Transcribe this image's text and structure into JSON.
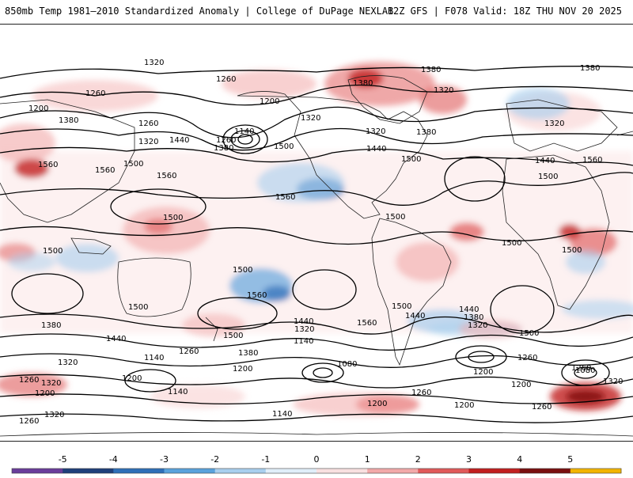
{
  "header": {
    "left_text": "850mb Temp 1981–2010 Standardized Anomaly | College of DuPage NEXLAB",
    "right_text": "12Z GFS | F078 Valid: 18Z THU NOV 20 2025"
  },
  "colorbar": {
    "ticks": [
      "-5",
      "-4",
      "-3",
      "-2",
      "-1",
      "0",
      "1",
      "2",
      "3",
      "4",
      "5"
    ],
    "colors": [
      "#6a3d9a",
      "#1f3f7a",
      "#2f6fb8",
      "#5aa2dc",
      "#a9cfee",
      "#e0eef9",
      "#f9e0e0",
      "#f2a9a9",
      "#e05a5a",
      "#c21f1f",
      "#7a0f0f",
      "#f2b400"
    ]
  },
  "contour_labels": [
    {
      "text": "1320"
    },
    {
      "text": "1380"
    },
    {
      "text": "1380"
    },
    {
      "text": "1260"
    },
    {
      "text": "1260"
    },
    {
      "text": "1200"
    },
    {
      "text": "1200"
    },
    {
      "text": "1380"
    },
    {
      "text": "1320"
    },
    {
      "text": "1320"
    },
    {
      "text": "1380"
    },
    {
      "text": "1260"
    },
    {
      "text": "1320"
    },
    {
      "text": "1140"
    },
    {
      "text": "1320"
    },
    {
      "text": "1320"
    },
    {
      "text": "1440"
    },
    {
      "text": "1260"
    },
    {
      "text": "1380"
    },
    {
      "text": "1500"
    },
    {
      "text": "1440"
    },
    {
      "text": "1380"
    },
    {
      "text": "1500"
    },
    {
      "text": "1440"
    },
    {
      "text": "1500"
    },
    {
      "text": "1560"
    },
    {
      "text": "1560"
    },
    {
      "text": "1500"
    },
    {
      "text": "1560"
    },
    {
      "text": "1560"
    },
    {
      "text": "1560"
    },
    {
      "text": "1500"
    },
    {
      "text": "1500"
    },
    {
      "text": "1500"
    },
    {
      "text": "1500"
    },
    {
      "text": "1500"
    },
    {
      "text": "1500"
    },
    {
      "text": "1560"
    },
    {
      "text": "1500"
    },
    {
      "text": "1500"
    },
    {
      "text": "1440"
    },
    {
      "text": "1560"
    },
    {
      "text": "1440"
    },
    {
      "text": "1380"
    },
    {
      "text": "1320"
    },
    {
      "text": "1500"
    },
    {
      "text": "1380"
    },
    {
      "text": "1440"
    },
    {
      "text": "1440"
    },
    {
      "text": "1320"
    },
    {
      "text": "1380"
    },
    {
      "text": "1500"
    },
    {
      "text": "1260"
    },
    {
      "text": "1140"
    },
    {
      "text": "1200"
    },
    {
      "text": "1320"
    },
    {
      "text": "1260"
    },
    {
      "text": "1140"
    },
    {
      "text": "1080"
    },
    {
      "text": "1200"
    },
    {
      "text": "1260"
    },
    {
      "text": "1200"
    },
    {
      "text": "1260"
    },
    {
      "text": "1080"
    },
    {
      "text": "1320"
    },
    {
      "text": "1200"
    },
    {
      "text": "1320"
    },
    {
      "text": "1200"
    },
    {
      "text": "1140"
    },
    {
      "text": "1260"
    },
    {
      "text": "1200"
    },
    {
      "text": "1140"
    },
    {
      "text": "1200"
    },
    {
      "text": "1260"
    },
    {
      "text": "1260"
    },
    {
      "text": "1320"
    }
  ]
}
